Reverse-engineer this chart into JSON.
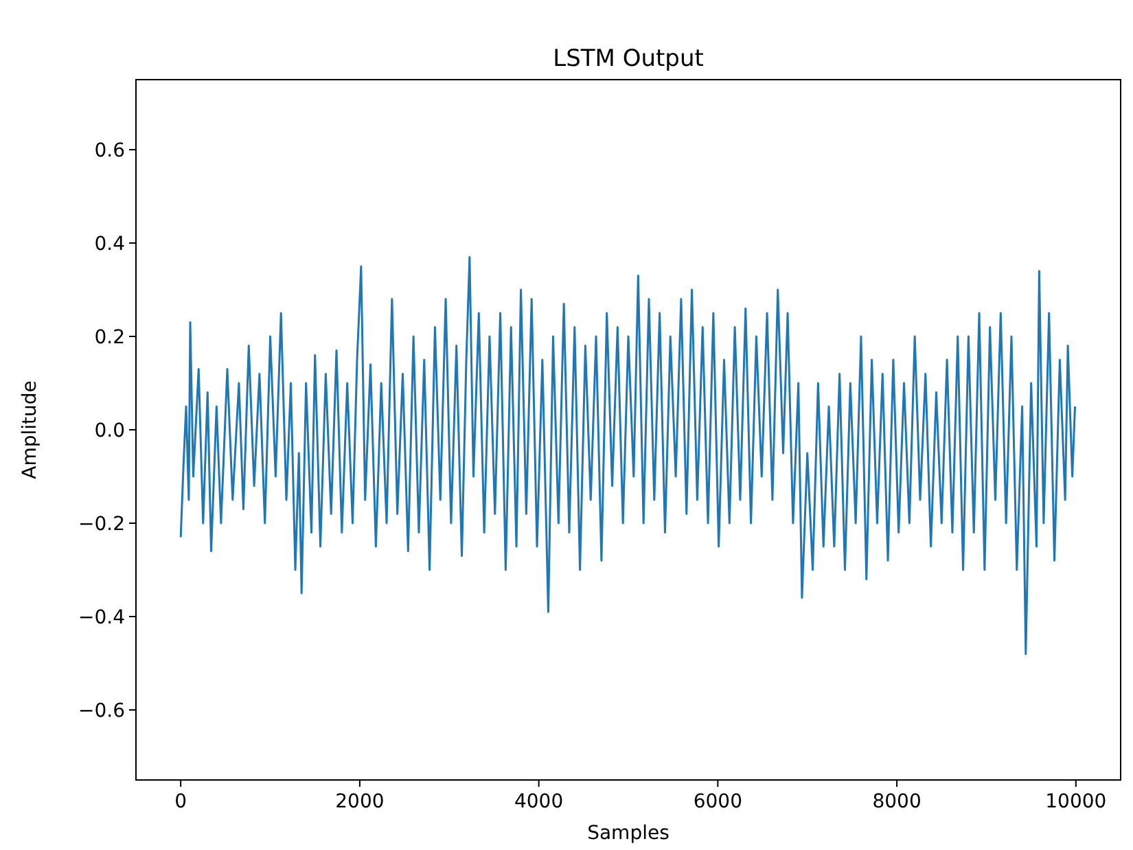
{
  "chart_data": {
    "type": "line",
    "title": "LSTM Output",
    "xlabel": "Samples",
    "ylabel": "Amplitude",
    "xlim": [
      -500,
      10500
    ],
    "ylim": [
      -0.75,
      0.75
    ],
    "xticks": [
      0,
      2000,
      4000,
      6000,
      8000,
      10000
    ],
    "yticks": [
      {
        "value": -0.6,
        "label": "−0.6"
      },
      {
        "value": -0.4,
        "label": "−0.4"
      },
      {
        "value": -0.2,
        "label": "−0.2"
      },
      {
        "value": 0,
        "label": "0.0"
      },
      {
        "value": 0.2,
        "label": "0.2"
      },
      {
        "value": 0.4,
        "label": "0.4"
      },
      {
        "value": 0.6,
        "label": "0.6"
      }
    ],
    "grid": false,
    "marker": "none",
    "line_style": "solid",
    "series": [
      {
        "color": "#1f77b4",
        "x": [
          0,
          30,
          60,
          90,
          106,
          140,
          200,
          250,
          300,
          340,
          400,
          450,
          520,
          580,
          650,
          700,
          760,
          820,
          880,
          940,
          1000,
          1060,
          1120,
          1180,
          1230,
          1280,
          1320,
          1350,
          1400,
          1460,
          1500,
          1560,
          1620,
          1680,
          1740,
          1800,
          1860,
          1920,
          1970,
          2015,
          2060,
          2120,
          2180,
          2240,
          2300,
          2360,
          2420,
          2480,
          2540,
          2600,
          2660,
          2720,
          2780,
          2840,
          2900,
          2960,
          3020,
          3080,
          3140,
          3190,
          3227,
          3270,
          3330,
          3390,
          3450,
          3510,
          3570,
          3630,
          3690,
          3750,
          3800,
          3860,
          3920,
          3980,
          4040,
          4106,
          4160,
          4220,
          4280,
          4340,
          4400,
          4460,
          4520,
          4580,
          4640,
          4700,
          4760,
          4820,
          4880,
          4940,
          5000,
          5060,
          5110,
          5170,
          5230,
          5290,
          5350,
          5410,
          5470,
          5530,
          5590,
          5650,
          5710,
          5770,
          5830,
          5890,
          5950,
          6010,
          6070,
          6130,
          6190,
          6250,
          6310,
          6370,
          6430,
          6490,
          6550,
          6610,
          6670,
          6730,
          6780,
          6840,
          6900,
          6940,
          7000,
          7060,
          7120,
          7180,
          7240,
          7300,
          7360,
          7420,
          7480,
          7540,
          7600,
          7660,
          7720,
          7780,
          7840,
          7900,
          7960,
          8020,
          8080,
          8140,
          8200,
          8260,
          8320,
          8380,
          8440,
          8500,
          8560,
          8620,
          8680,
          8740,
          8800,
          8860,
          8920,
          8980,
          9040,
          9100,
          9160,
          9220,
          9280,
          9340,
          9400,
          9440,
          9500,
          9560,
          9590,
          9640,
          9700,
          9760,
          9820,
          9880,
          9910,
          9960,
          9990
        ],
        "values": [
          -0.23,
          -0.08,
          0.05,
          -0.15,
          0.23,
          -0.1,
          0.13,
          -0.2,
          0.08,
          -0.26,
          0.05,
          -0.2,
          0.13,
          -0.15,
          0.1,
          -0.17,
          0.18,
          -0.12,
          0.12,
          -0.2,
          0.2,
          -0.1,
          0.25,
          -0.15,
          0.1,
          -0.3,
          -0.05,
          -0.35,
          0.1,
          -0.22,
          0.16,
          -0.25,
          0.12,
          -0.18,
          0.17,
          -0.22,
          0.1,
          -0.2,
          0.15,
          0.35,
          -0.15,
          0.14,
          -0.25,
          0.1,
          -0.2,
          0.28,
          -0.18,
          0.12,
          -0.26,
          0.2,
          -0.22,
          0.15,
          -0.3,
          0.22,
          -0.15,
          0.28,
          -0.2,
          0.18,
          -0.27,
          0.15,
          0.37,
          -0.1,
          0.25,
          -0.22,
          0.2,
          -0.18,
          0.25,
          -0.3,
          0.22,
          -0.25,
          0.3,
          -0.18,
          0.28,
          -0.25,
          0.15,
          -0.39,
          0.2,
          -0.2,
          0.27,
          -0.22,
          0.22,
          -0.3,
          0.18,
          -0.15,
          0.2,
          -0.28,
          0.25,
          -0.12,
          0.22,
          -0.2,
          0.2,
          -0.1,
          0.33,
          -0.2,
          0.28,
          -0.15,
          0.25,
          -0.22,
          0.2,
          -0.1,
          0.28,
          -0.18,
          0.3,
          -0.15,
          0.22,
          -0.2,
          0.25,
          -0.25,
          0.15,
          -0.2,
          0.22,
          -0.15,
          0.26,
          -0.2,
          0.2,
          -0.1,
          0.25,
          -0.15,
          0.3,
          -0.05,
          0.25,
          -0.2,
          0.1,
          -0.36,
          -0.05,
          -0.3,
          0.1,
          -0.25,
          0.05,
          -0.25,
          0.12,
          -0.3,
          0.1,
          -0.2,
          0.2,
          -0.32,
          0.15,
          -0.2,
          0.12,
          -0.28,
          0.15,
          -0.22,
          0.1,
          -0.2,
          0.2,
          -0.15,
          0.12,
          -0.25,
          0.08,
          -0.2,
          0.15,
          -0.22,
          0.2,
          -0.3,
          0.2,
          -0.22,
          0.25,
          -0.3,
          0.22,
          -0.15,
          0.25,
          -0.2,
          0.2,
          -0.3,
          0.05,
          -0.48,
          0.1,
          -0.25,
          0.34,
          -0.2,
          0.25,
          -0.28,
          0.15,
          -0.15,
          0.18,
          -0.1,
          0.05
        ]
      }
    ]
  }
}
